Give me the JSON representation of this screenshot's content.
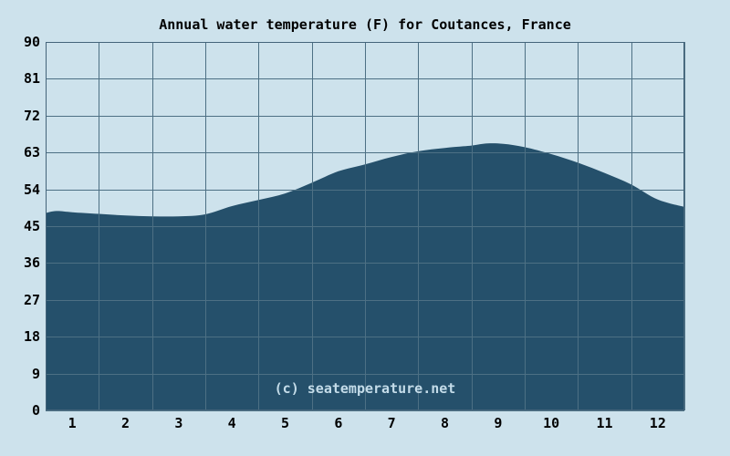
{
  "page": {
    "title": "Annual water temperature (F) for Coutances, France",
    "watermark": "(c) seatemperature.net"
  },
  "colors": {
    "background": "#cde2ec",
    "area_fill": "#25506b",
    "grid_line": "#4d7084",
    "chart_border": "#44647a",
    "label_text": "#000000",
    "watermark_text": "#c4dce9"
  },
  "chart_data": {
    "type": "area",
    "title": "Annual water temperature (F) for Coutances, France",
    "xlabel": "",
    "ylabel": "",
    "x_tick_labels": [
      "1",
      "2",
      "3",
      "4",
      "5",
      "6",
      "7",
      "8",
      "9",
      "10",
      "11",
      "12"
    ],
    "y_ticks": [
      0,
      9,
      18,
      27,
      36,
      45,
      54,
      63,
      72,
      81,
      90
    ],
    "ylim": [
      0,
      90
    ],
    "xlim_months": [
      0,
      12
    ],
    "grid": true,
    "legend": false,
    "categories": [
      "1",
      "2",
      "3",
      "4",
      "5",
      "6",
      "7",
      "8",
      "9",
      "10",
      "11",
      "12"
    ],
    "monthly_values_f": [
      48.2,
      47.5,
      47.4,
      49.9,
      53.0,
      58.5,
      61.9,
      64.1,
      65.0,
      62.6,
      58.0,
      51.5
    ],
    "curve_samples": [
      [
        0.0,
        48.2
      ],
      [
        0.2,
        48.7
      ],
      [
        0.5,
        48.4
      ],
      [
        1.0,
        48.0
      ],
      [
        1.5,
        47.6
      ],
      [
        2.0,
        47.4
      ],
      [
        2.5,
        47.4
      ],
      [
        3.0,
        47.9
      ],
      [
        3.5,
        49.9
      ],
      [
        4.0,
        51.4
      ],
      [
        4.5,
        53.0
      ],
      [
        5.0,
        55.6
      ],
      [
        5.5,
        58.4
      ],
      [
        6.0,
        60.1
      ],
      [
        6.5,
        61.9
      ],
      [
        7.0,
        63.3
      ],
      [
        7.5,
        64.1
      ],
      [
        8.0,
        64.7
      ],
      [
        8.3,
        65.2
      ],
      [
        8.6,
        65.1
      ],
      [
        9.0,
        64.3
      ],
      [
        9.5,
        62.6
      ],
      [
        10.0,
        60.5
      ],
      [
        10.5,
        58.0
      ],
      [
        11.0,
        55.2
      ],
      [
        11.5,
        51.5
      ],
      [
        12.0,
        49.7
      ]
    ]
  }
}
